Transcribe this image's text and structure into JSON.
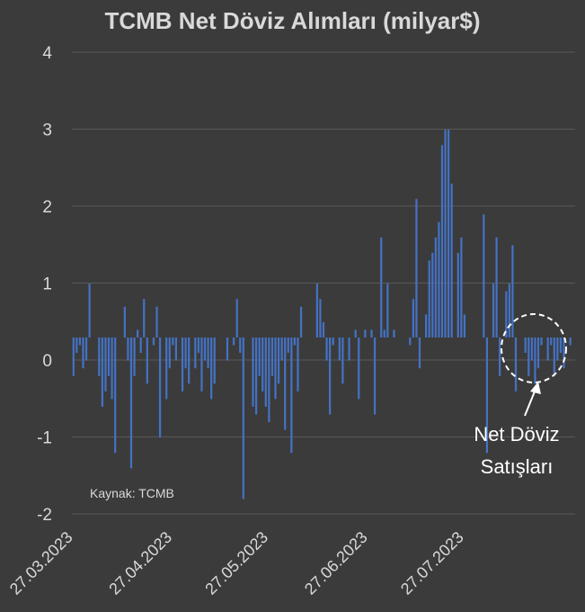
{
  "chart_data": {
    "type": "bar",
    "title": "TCMB Net Döviz Alımları (milyar$)",
    "xlabel": "",
    "ylabel": "",
    "ylim": [
      -2,
      4
    ],
    "yticks": [
      "4",
      "3",
      "2",
      "1",
      "0",
      "-1",
      "-2"
    ],
    "ytick_values": [
      4,
      3,
      2,
      1,
      0,
      -1,
      -2
    ],
    "xtick_labels": [
      "27.03.2023",
      "27.04.2023",
      "27.05.2023",
      "27.06.2023",
      "27.07.2023"
    ],
    "xtick_index": [
      0,
      31,
      61,
      92,
      122
    ],
    "start_date": "27.03.2023",
    "grid": true,
    "bar_color": "#4472c4",
    "source": "Kaynak: TCMB",
    "annotation": "Net Döviz Satışları",
    "annotation_lines": [
      "Net Döviz",
      "Satışları"
    ],
    "values": [
      -0.5,
      -0.2,
      -0.1,
      -0.4,
      -0.3,
      0.7,
      0,
      0,
      -0.5,
      -0.9,
      -0.7,
      -0.5,
      -0.8,
      -1.5,
      0,
      0,
      0.4,
      -0.3,
      -1.7,
      -0.5,
      0.1,
      -0.2,
      0.5,
      -0.6,
      0,
      -0.1,
      0.4,
      -1.3,
      0,
      -0.8,
      -0.4,
      -0.1,
      -0.3,
      0,
      -0.7,
      -0.4,
      -0.6,
      0,
      -0.4,
      -0.2,
      -0.7,
      -0.3,
      -0.4,
      -0.8,
      -0.6,
      0,
      0,
      0,
      -0.3,
      0,
      -0.1,
      0.5,
      -0.2,
      -2.1,
      0,
      0,
      -0.9,
      -1.0,
      -0.5,
      -0.7,
      -0.9,
      -1.1,
      -0.5,
      -0.8,
      -0.6,
      -0.3,
      -1.2,
      -0.2,
      -1.5,
      -0.1,
      -0.7,
      0.4,
      0,
      0,
      0,
      0,
      0.7,
      0.5,
      0.2,
      -0.3,
      -1.0,
      -0.1,
      0,
      -0.3,
      -0.6,
      0,
      -0.3,
      0,
      0.1,
      -0.8,
      0,
      0.1,
      0,
      0.1,
      -1.0,
      0,
      1.3,
      0.1,
      0.7,
      0,
      0.1,
      0,
      0,
      0,
      0,
      -0.1,
      0.5,
      1.8,
      -0.4,
      0,
      0.3,
      1.0,
      1.1,
      1.3,
      1.5,
      2.5,
      2.7,
      2.7,
      2.0,
      0,
      1.1,
      1.3,
      0.3,
      0,
      0,
      0,
      0,
      0,
      1.6,
      -1.5,
      0,
      0.7,
      1.3,
      -0.5,
      0,
      0.6,
      0.7,
      1.2,
      -0.7,
      0,
      0,
      -0.2,
      -0.5,
      -0.3,
      -0.6,
      -0.4,
      -0.1,
      0,
      -0.3,
      -0.1,
      -0.5,
      -0.3,
      -0.2,
      -0.4,
      0,
      -0.1,
      0
    ]
  }
}
